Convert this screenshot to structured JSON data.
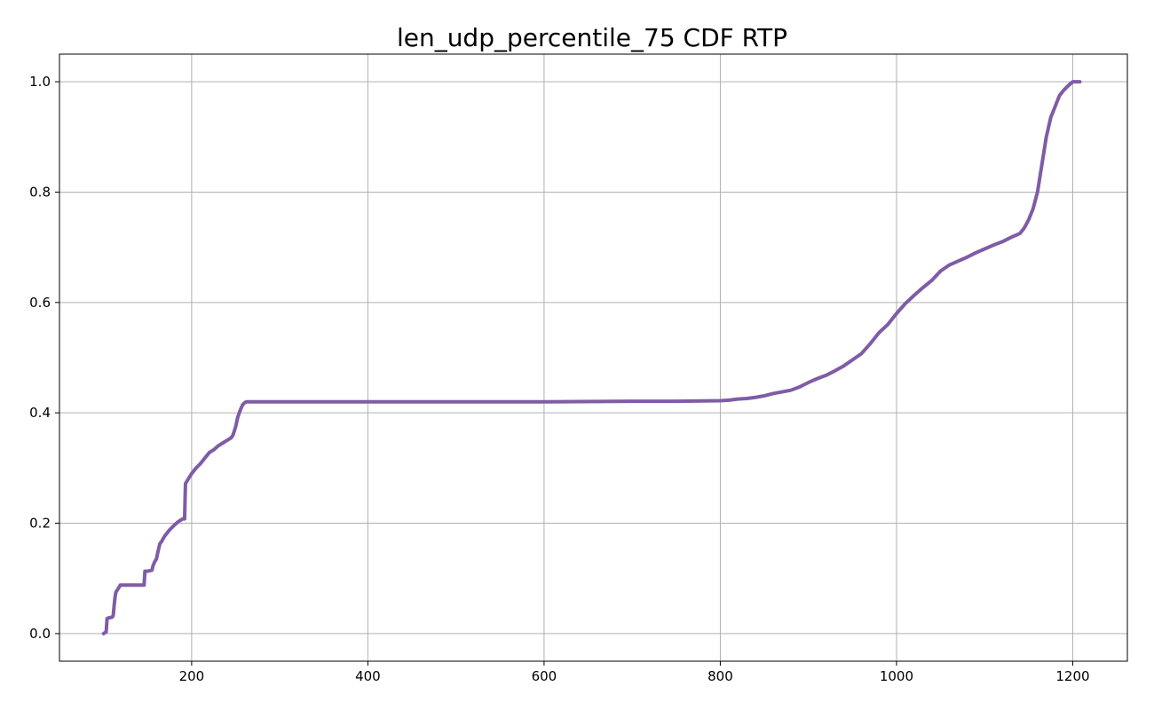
{
  "chart_data": {
    "type": "line",
    "title": "len_udp_percentile_75 CDF RTP",
    "xlabel": "",
    "ylabel": "",
    "xlim": [
      50,
      1262
    ],
    "ylim": [
      -0.05,
      1.05
    ],
    "x_ticks": [
      200,
      400,
      600,
      800,
      1000,
      1200
    ],
    "y_ticks": [
      0.0,
      0.2,
      0.4,
      0.6,
      0.8,
      1.0
    ],
    "x_tick_labels": [
      "200",
      "400",
      "600",
      "800",
      "1000",
      "1200"
    ],
    "y_tick_labels": [
      "0.0",
      "0.2",
      "0.4",
      "0.6",
      "0.8",
      "1.0"
    ],
    "grid": true,
    "legend": "none",
    "series": [
      {
        "color": "#7f5ca6",
        "x": [
          100,
          103,
          104,
          105,
          110,
          111,
          112,
          113,
          114,
          116,
          118,
          119,
          120,
          122,
          125,
          128,
          130,
          135,
          140,
          145,
          146,
          147,
          150,
          155,
          156,
          158,
          160,
          162,
          164,
          166,
          168,
          170,
          175,
          180,
          185,
          190,
          192,
          193,
          195,
          200,
          205,
          210,
          215,
          220,
          225,
          230,
          235,
          240,
          245,
          247,
          250,
          252,
          254,
          256,
          258,
          260,
          262,
          264,
          266,
          268,
          270,
          280,
          300,
          400,
          500,
          600,
          700,
          750,
          800,
          810,
          820,
          830,
          840,
          850,
          860,
          870,
          880,
          890,
          900,
          910,
          920,
          930,
          940,
          950,
          960,
          970,
          980,
          990,
          1000,
          1010,
          1020,
          1030,
          1040,
          1050,
          1060,
          1070,
          1080,
          1090,
          1100,
          1110,
          1120,
          1130,
          1140,
          1145,
          1150,
          1155,
          1160,
          1165,
          1170,
          1175,
          1180,
          1185,
          1190,
          1195,
          1200,
          1205,
          1208
        ],
        "y": [
          0.0,
          0.003,
          0.027,
          0.028,
          0.03,
          0.033,
          0.05,
          0.065,
          0.075,
          0.08,
          0.085,
          0.088,
          0.088,
          0.088,
          0.088,
          0.088,
          0.088,
          0.088,
          0.088,
          0.088,
          0.088,
          0.113,
          0.113,
          0.115,
          0.122,
          0.13,
          0.135,
          0.15,
          0.163,
          0.167,
          0.173,
          0.178,
          0.188,
          0.196,
          0.203,
          0.208,
          0.208,
          0.272,
          0.277,
          0.29,
          0.3,
          0.308,
          0.318,
          0.328,
          0.333,
          0.34,
          0.345,
          0.35,
          0.355,
          0.36,
          0.375,
          0.39,
          0.4,
          0.408,
          0.415,
          0.418,
          0.42,
          0.42,
          0.42,
          0.42,
          0.42,
          0.42,
          0.42,
          0.42,
          0.42,
          0.42,
          0.421,
          0.421,
          0.422,
          0.423,
          0.425,
          0.426,
          0.428,
          0.431,
          0.435,
          0.438,
          0.441,
          0.447,
          0.455,
          0.462,
          0.468,
          0.476,
          0.485,
          0.496,
          0.507,
          0.525,
          0.545,
          0.56,
          0.58,
          0.598,
          0.613,
          0.627,
          0.64,
          0.657,
          0.668,
          0.675,
          0.682,
          0.69,
          0.697,
          0.704,
          0.71,
          0.718,
          0.725,
          0.735,
          0.75,
          0.77,
          0.8,
          0.85,
          0.9,
          0.935,
          0.955,
          0.975,
          0.985,
          0.993,
          1.0,
          1.0,
          1.0
        ]
      }
    ]
  }
}
